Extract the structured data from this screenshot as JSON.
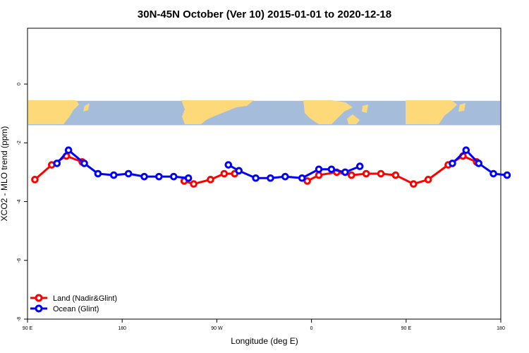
{
  "chart_data": {
    "type": "line",
    "title": "30N-45N October (Ver 10)   2015-01-01 to 2020-12-18",
    "xlabel": "Longitude (deg E)",
    "ylabel": "XCO2 - MLO trend (ppm)",
    "xlim": [
      90,
      540
    ],
    "ylim": [
      -8,
      1.9
    ],
    "x_ticks": [
      {
        "value": 90,
        "label": "90 E"
      },
      {
        "value": 180,
        "label": "180"
      },
      {
        "value": 270,
        "label": "90 W"
      },
      {
        "value": 360,
        "label": "0"
      },
      {
        "value": 450,
        "label": "90 E"
      },
      {
        "value": 540,
        "label": "180"
      }
    ],
    "y_ticks": [
      {
        "value": 0,
        "label": "0"
      },
      {
        "value": -2,
        "label": "-2"
      },
      {
        "value": -4,
        "label": "-4"
      },
      {
        "value": -6,
        "label": "-6"
      },
      {
        "value": -8,
        "label": "-8"
      }
    ],
    "map_band": {
      "ymin": -1.4,
      "ymax": -0.57,
      "ocean_color": "#a5bcdb",
      "land_color": "#fdd97a"
    },
    "legend": {
      "position": "bottom-left"
    },
    "series": [
      {
        "name": "Land (Nadir&Glint)",
        "color": "#ff0000",
        "segments": [
          {
            "x": [
              97,
              113,
              127,
              142
            ],
            "y": [
              -3.25,
              -2.75,
              -2.45,
              -2.65
            ]
          },
          {
            "x": [
              239,
              248,
              264,
              277,
              287
            ],
            "y": [
              -3.3,
              -3.4,
              -3.25,
              -3.05,
              -3.05
            ]
          },
          {
            "x": [
              356,
              367,
              384,
              398,
              412,
              426,
              440,
              457,
              471,
              490,
              504,
              517
            ],
            "y": [
              -3.3,
              -3.1,
              -3.0,
              -3.1,
              -3.05,
              -3.05,
              -3.1,
              -3.4,
              -3.25,
              -2.75,
              -2.45,
              -2.65
            ]
          }
        ]
      },
      {
        "name": "Ocean (Glint)",
        "color": "#0000ff",
        "segments": [
          {
            "x": [
              118,
              129,
              144,
              157,
              172,
              186,
              201,
              215,
              229,
              243
            ],
            "y": [
              -2.7,
              -2.25,
              -2.7,
              -3.05,
              -3.1,
              -3.05,
              -3.15,
              -3.15,
              -3.15,
              -3.2
            ]
          },
          {
            "x": [
              281,
              291,
              307,
              321,
              335,
              351,
              367,
              379,
              392,
              406
            ],
            "y": [
              -2.75,
              -2.95,
              -3.2,
              -3.2,
              -3.15,
              -3.2,
              -2.9,
              -2.9,
              -3.0,
              -2.8
            ]
          },
          {
            "x": [
              494,
              507,
              519,
              533,
              546
            ],
            "y": [
              -2.7,
              -2.25,
              -2.7,
              -3.05,
              -3.1
            ]
          }
        ]
      }
    ]
  }
}
